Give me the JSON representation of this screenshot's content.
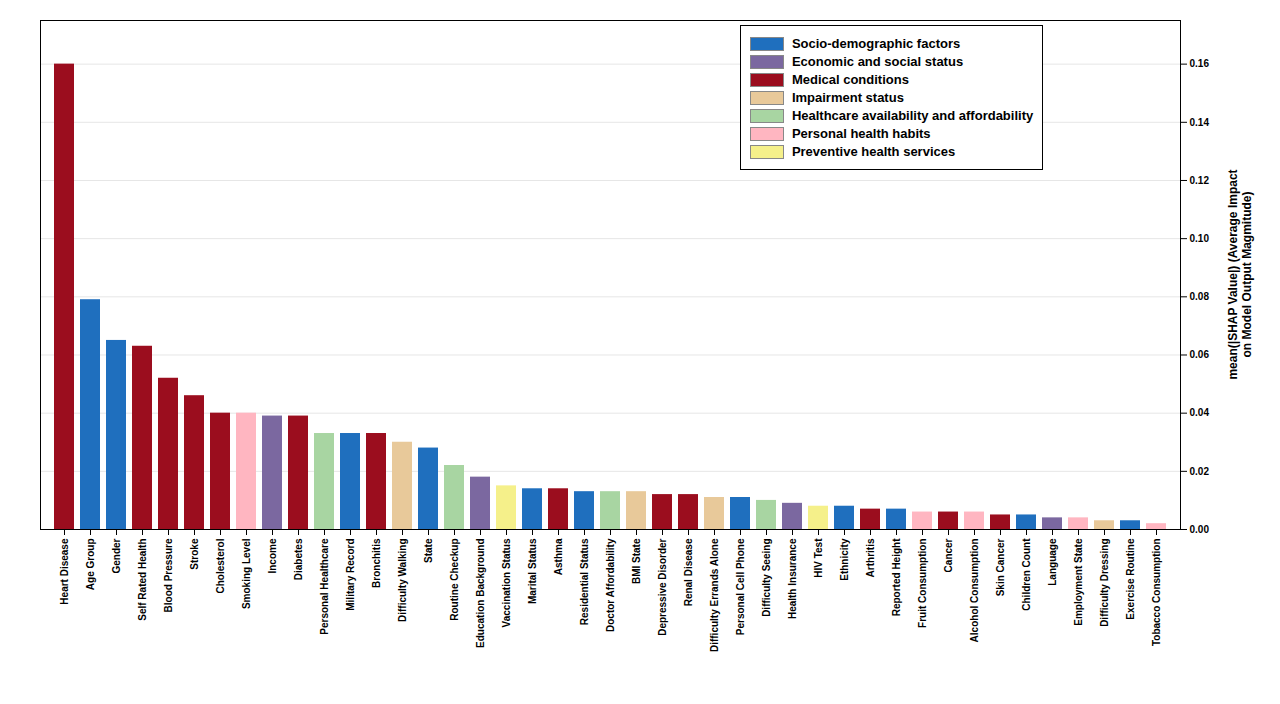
{
  "chart_data": {
    "type": "bar",
    "categories": [
      "Heart Disease",
      "Age Group",
      "Gender",
      "Self Rated Health",
      "Blood Pressure",
      "Stroke",
      "Cholesterol",
      "Smoking Level",
      "Income",
      "Diabetes",
      "Personal Healthcare",
      "Military Record",
      "Bronchitis",
      "Difficulty Walking",
      "State",
      "Routine Checkup",
      "Education Background",
      "Vaccination Status",
      "Marital Status",
      "Asthma",
      "Residential Status",
      "Doctor Affordability",
      "BMI State",
      "Depressive Disorder",
      "Renal Disease",
      "Difficulty Errands Alone",
      "Personal Cell Phone",
      "Difficulty Seeing",
      "Health Insurance",
      "HIV Test",
      "Ethnicity",
      "Arthritis",
      "Reported Height",
      "Fruit Consumption",
      "Cancer",
      "Alcohol Consumption",
      "Skin Cancer",
      "Children Count",
      "Language",
      "Employment State",
      "Difficulty Dressing",
      "Exercise Routine",
      "Tobacco Consumption"
    ],
    "values": [
      0.16,
      0.079,
      0.065,
      0.063,
      0.052,
      0.046,
      0.04,
      0.04,
      0.039,
      0.039,
      0.033,
      0.033,
      0.033,
      0.03,
      0.028,
      0.022,
      0.018,
      0.015,
      0.014,
      0.014,
      0.013,
      0.013,
      0.013,
      0.012,
      0.012,
      0.011,
      0.011,
      0.01,
      0.009,
      0.008,
      0.008,
      0.007,
      0.007,
      0.006,
      0.006,
      0.006,
      0.005,
      0.005,
      0.004,
      0.004,
      0.003,
      0.003,
      0.002
    ],
    "colors": [
      "#9B0D1E",
      "#1F6FBE",
      "#1F6FBE",
      "#9B0D1E",
      "#9B0D1E",
      "#9B0D1E",
      "#9B0D1E",
      "#FFB6C1",
      "#7B68A0",
      "#9B0D1E",
      "#A8D5A2",
      "#1F6FBE",
      "#9B0D1E",
      "#E8C99A",
      "#1F6FBE",
      "#A8D5A2",
      "#7B68A0",
      "#F5F08A",
      "#1F6FBE",
      "#9B0D1E",
      "#1F6FBE",
      "#A8D5A2",
      "#E8C99A",
      "#9B0D1E",
      "#9B0D1E",
      "#E8C99A",
      "#1F6FBE",
      "#A8D5A2",
      "#7B68A0",
      "#F5F08A",
      "#1F6FBE",
      "#9B0D1E",
      "#1F6FBE",
      "#FFB6C1",
      "#9B0D1E",
      "#FFB6C1",
      "#9B0D1E",
      "#1F6FBE",
      "#7B68A0",
      "#FFB6C1",
      "#E8C99A",
      "#1F6FBE",
      "#FFB6C1"
    ],
    "legend": "upper right",
    "legend_labels": [
      "Socio-demographic factors",
      "Economic and social status",
      "Medical conditions",
      "Impairment status",
      "Healthcare availability and affordability",
      "Personal health habits",
      "Preventive health services"
    ],
    "legend_colors": [
      "#1F6FBE",
      "#7B68A0",
      "#9B0D1E",
      "#E8C99A",
      "#A8D5A2",
      "#FFB6C1",
      "#F5F08A"
    ],
    "ylabel": "mean(|SHAP Value|) (Average Impact\non Model Output Magmitude)",
    "ylim": [
      0.0,
      0.175
    ],
    "yticks": [
      {
        "value": 0,
        "label": "0.00"
      },
      0.02,
      0.04,
      0.06,
      0.08,
      {
        "value": 0.1,
        "label": "0.10"
      },
      0.12,
      0.14,
      0.16
    ],
    "grid": true
  }
}
